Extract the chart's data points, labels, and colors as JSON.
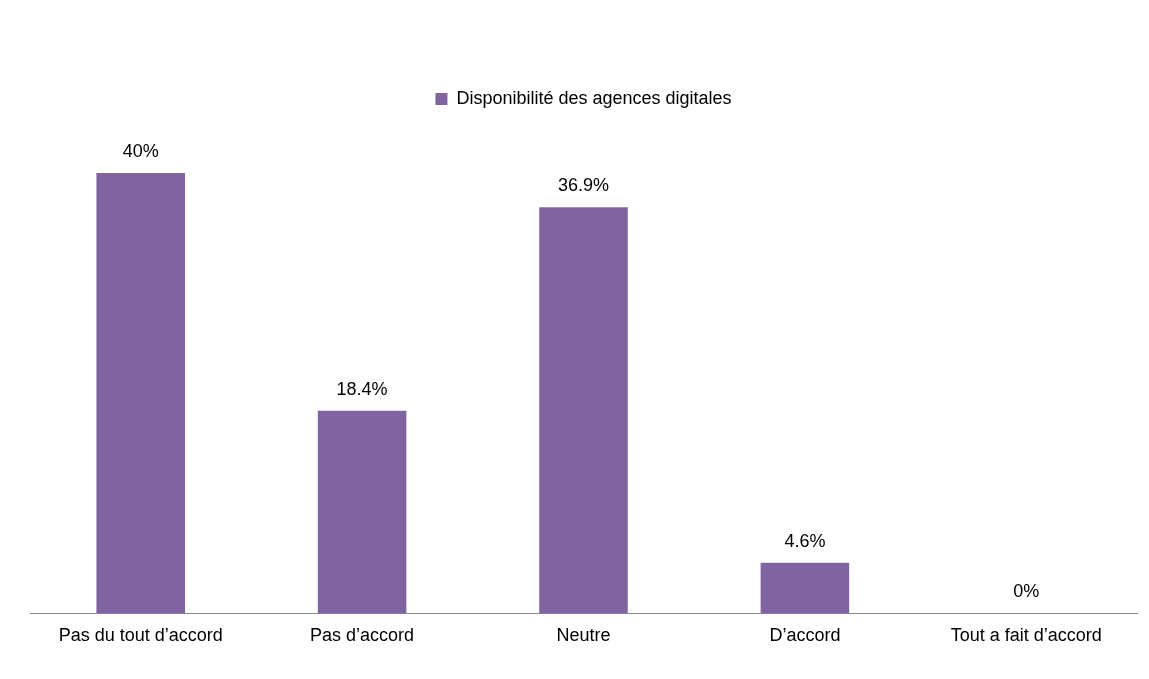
{
  "chart_data": {
    "type": "bar",
    "categories": [
      "Pas du tout d’accord",
      "Pas d’accord",
      "Neutre",
      "D’accord",
      "Tout a fait d’accord"
    ],
    "series": [
      {
        "name": "Disponibilité des agences digitales",
        "color": "#8064a2",
        "values": [
          40,
          18.4,
          36.9,
          4.6,
          0
        ],
        "value_labels": [
          "40%",
          "18.4%",
          "36.9%",
          "4.6%",
          "0%"
        ]
      }
    ],
    "legend": "top",
    "grid": false
  }
}
